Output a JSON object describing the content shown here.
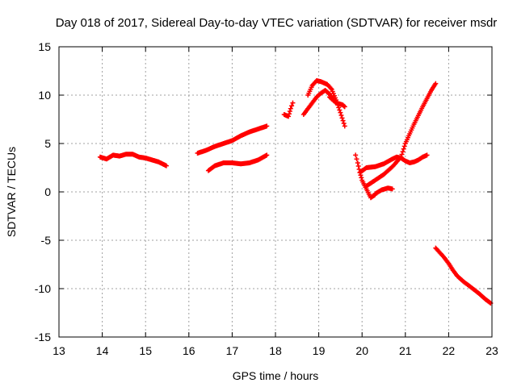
{
  "chart_data": {
    "type": "scatter",
    "title": "Day 018 of 2017, Sidereal Day-to-day VTEC variation (SDTVAR) for receiver msdr",
    "xlabel": "GPS time / hours",
    "ylabel": "SDTVAR / TECUs",
    "xlim": [
      13,
      23
    ],
    "ylim": [
      -15,
      15
    ],
    "x_ticks": [
      "13",
      "14",
      "15",
      "16",
      "17",
      "18",
      "19",
      "20",
      "21",
      "22",
      "23"
    ],
    "y_ticks": [
      "-15",
      "-10",
      "-5",
      "0",
      "5",
      "10",
      "15"
    ],
    "grid": true,
    "legend": "none",
    "marker": "plus",
    "color": "#ff0000",
    "segments": [
      {
        "x": [
          13.95,
          14.1,
          14.25,
          14.4,
          14.55,
          14.7,
          14.85,
          15.0,
          15.15,
          15.3,
          15.48
        ],
        "y": [
          3.6,
          3.4,
          3.8,
          3.7,
          3.9,
          3.9,
          3.6,
          3.5,
          3.3,
          3.1,
          2.7
        ]
      },
      {
        "x": [
          16.2,
          16.4,
          16.6,
          16.8,
          17.0,
          17.2,
          17.4,
          17.6,
          17.8
        ],
        "y": [
          4.0,
          4.3,
          4.7,
          5.0,
          5.3,
          5.8,
          6.2,
          6.5,
          6.8
        ]
      },
      {
        "x": [
          16.45,
          16.6,
          16.8,
          17.0,
          17.2,
          17.4,
          17.6,
          17.8
        ],
        "y": [
          2.2,
          2.7,
          3.0,
          3.0,
          2.9,
          3.0,
          3.3,
          3.8
        ]
      },
      {
        "x": [
          18.2,
          18.3,
          18.35,
          18.4
        ],
        "y": [
          8.0,
          7.8,
          8.6,
          9.2
        ]
      },
      {
        "x": [
          18.65,
          18.75,
          18.85,
          18.95,
          19.05,
          19.15,
          19.25,
          19.35
        ],
        "y": [
          8.0,
          8.6,
          9.2,
          9.8,
          10.2,
          10.5,
          10.1,
          9.4
        ]
      },
      {
        "x": [
          18.75,
          18.85,
          18.95,
          19.05,
          19.2,
          19.3,
          19.4,
          19.5,
          19.6
        ],
        "y": [
          10.0,
          11.0,
          11.5,
          11.4,
          11.1,
          10.6,
          9.5,
          8.2,
          6.8
        ]
      },
      {
        "x": [
          19.25,
          19.4,
          19.55,
          19.6
        ],
        "y": [
          9.8,
          9.2,
          9.0,
          8.8
        ]
      },
      {
        "x": [
          19.85,
          19.9,
          19.95,
          20.0,
          20.1,
          20.2,
          20.3
        ],
        "y": [
          3.8,
          3.0,
          2.0,
          1.2,
          0.3,
          -0.6,
          -0.3
        ]
      },
      {
        "x": [
          20.3,
          20.45,
          20.6,
          20.7
        ],
        "y": [
          -0.2,
          0.2,
          0.4,
          0.3
        ]
      },
      {
        "x": [
          19.95,
          20.1,
          20.3,
          20.5,
          20.7,
          20.8,
          20.9,
          21.0,
          21.1,
          21.2,
          21.3,
          21.4,
          21.5
        ],
        "y": [
          2.0,
          2.5,
          2.6,
          2.9,
          3.4,
          3.6,
          3.5,
          3.2,
          3.0,
          3.1,
          3.3,
          3.6,
          3.8
        ]
      },
      {
        "x": [
          20.1,
          20.3,
          20.5,
          20.7,
          20.9,
          21.0,
          21.2,
          21.4,
          21.6,
          21.7
        ],
        "y": [
          0.6,
          1.2,
          1.8,
          2.6,
          3.6,
          5.0,
          7.0,
          8.8,
          10.5,
          11.2
        ]
      },
      {
        "x": [
          21.7,
          21.8,
          21.9,
          22.0,
          22.1,
          22.2,
          22.35,
          22.5,
          22.7,
          22.85,
          22.97
        ],
        "y": [
          -5.8,
          -6.3,
          -6.8,
          -7.4,
          -8.1,
          -8.7,
          -9.3,
          -9.8,
          -10.5,
          -11.1,
          -11.5
        ]
      }
    ]
  }
}
